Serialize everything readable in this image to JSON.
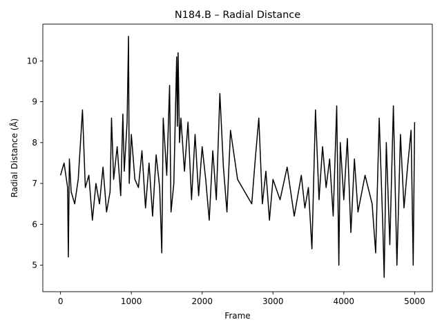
{
  "chart_data": {
    "type": "line",
    "title": "N184.B – Radial Distance",
    "xlabel": "Frame",
    "ylabel": "Radial Distance (Å)",
    "xlim": [
      -250,
      5250
    ],
    "ylim": [
      4.35,
      10.9
    ],
    "xticks": [
      0,
      1000,
      2000,
      3000,
      4000,
      5000
    ],
    "yticks": [
      5,
      6,
      7,
      8,
      9,
      10
    ],
    "grid": false,
    "series": [
      {
        "color": "#000000",
        "x": [
          0,
          50,
          100,
          110,
          125,
          150,
          200,
          250,
          310,
          350,
          400,
          450,
          500,
          550,
          600,
          650,
          700,
          720,
          750,
          800,
          850,
          880,
          900,
          940,
          960,
          970,
          1000,
          1050,
          1100,
          1150,
          1200,
          1250,
          1300,
          1350,
          1400,
          1430,
          1450,
          1500,
          1540,
          1560,
          1600,
          1640,
          1650,
          1660,
          1680,
          1700,
          1750,
          1800,
          1850,
          1900,
          1950,
          2000,
          2050,
          2100,
          2150,
          2200,
          2250,
          2300,
          2350,
          2400,
          2500,
          2600,
          2700,
          2750,
          2800,
          2850,
          2900,
          2950,
          3000,
          3100,
          3200,
          3300,
          3400,
          3450,
          3500,
          3550,
          3600,
          3650,
          3700,
          3750,
          3800,
          3850,
          3900,
          3930,
          3950,
          4000,
          4050,
          4100,
          4150,
          4200,
          4300,
          4400,
          4450,
          4500,
          4550,
          4570,
          4600,
          4650,
          4700,
          4750,
          4800,
          4850,
          4900,
          4950,
          4980,
          5000
        ],
        "y": [
          7.2,
          7.5,
          6.9,
          5.2,
          7.6,
          6.8,
          6.5,
          7.1,
          8.8,
          6.9,
          7.2,
          6.1,
          7.0,
          6.5,
          7.4,
          6.3,
          6.8,
          8.6,
          7.1,
          7.9,
          6.7,
          8.7,
          7.3,
          8.5,
          10.6,
          7.0,
          8.2,
          7.1,
          6.9,
          7.8,
          6.4,
          7.5,
          6.2,
          7.7,
          6.9,
          5.3,
          8.6,
          7.2,
          9.4,
          6.3,
          7.0,
          10.1,
          8.4,
          10.2,
          8.0,
          8.6,
          7.3,
          8.5,
          6.6,
          8.2,
          6.7,
          7.9,
          7.1,
          6.1,
          7.8,
          6.6,
          9.2,
          7.4,
          6.3,
          8.3,
          7.1,
          6.8,
          6.5,
          7.6,
          8.6,
          6.5,
          7.3,
          6.1,
          7.1,
          6.6,
          7.4,
          6.2,
          7.2,
          6.4,
          6.9,
          5.4,
          8.8,
          6.6,
          7.9,
          6.9,
          7.6,
          6.2,
          8.9,
          5.0,
          8.0,
          6.6,
          8.1,
          5.8,
          7.6,
          6.3,
          7.2,
          6.5,
          5.3,
          8.6,
          6.0,
          4.7,
          8.0,
          5.5,
          8.9,
          5.0,
          8.2,
          6.4,
          7.4,
          8.3,
          5.0,
          8.5
        ]
      }
    ]
  }
}
